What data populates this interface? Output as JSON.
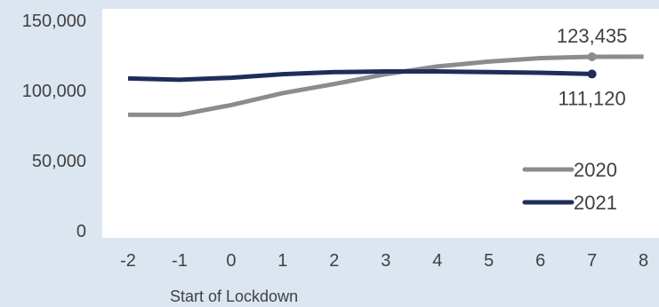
{
  "chart_data": {
    "type": "line",
    "title": "",
    "xlabel": "Start of Lockdown",
    "ylabel": "",
    "x": [
      -2,
      -1,
      0,
      1,
      2,
      3,
      4,
      5,
      6,
      7,
      8
    ],
    "xlim": [
      -2.5,
      8.3
    ],
    "ylim": [
      0,
      150000
    ],
    "y_ticks": [
      "0",
      "50,000",
      "100,000",
      "150,000"
    ],
    "x_ticks": [
      "-2",
      "-1",
      "0",
      "1",
      "2",
      "3",
      "4",
      "5",
      "6",
      "7",
      "8"
    ],
    "grid": false,
    "legend_position": "right",
    "series": [
      {
        "name": "2020",
        "color": "#8c8c8c",
        "values": [
          82000,
          82000,
          89000,
          97500,
          104000,
          111000,
          116500,
          120000,
          122500,
          123435,
          123500
        ]
      },
      {
        "name": "2021",
        "color": "#1f2d5a",
        "values": [
          108000,
          107000,
          108500,
          111000,
          112500,
          113000,
          113000,
          112500,
          112000,
          111120,
          null
        ]
      }
    ],
    "annotations": [
      {
        "series": "2020",
        "x": 7,
        "label": "123,435"
      },
      {
        "series": "2021",
        "x": 7,
        "label": "111,120"
      }
    ]
  }
}
